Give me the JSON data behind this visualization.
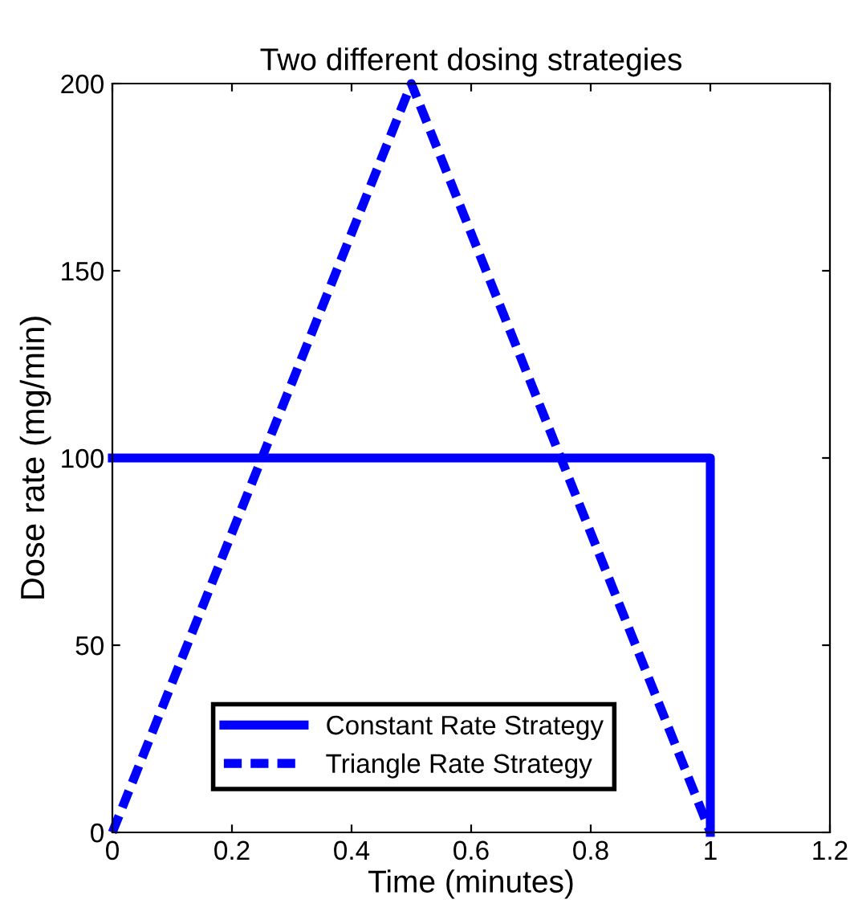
{
  "chart_data": {
    "type": "line",
    "title": "Two different dosing strategies",
    "xlabel": "Time (minutes)",
    "ylabel": "Dose rate (mg/min)",
    "xlim": [
      0,
      1.2
    ],
    "xticks": [
      0,
      0.2,
      0.4,
      0.6,
      0.8,
      1,
      1.2
    ],
    "ylim": [
      0,
      200
    ],
    "yticks": [
      0,
      50,
      100,
      150,
      200
    ],
    "grid": false,
    "legend": "bottom",
    "series": [
      {
        "name": "Constant Rate Strategy",
        "color": "#0000ff",
        "line_style": "solid",
        "x": [
          0,
          1,
          1
        ],
        "values": [
          100,
          100,
          0
        ]
      },
      {
        "name": "Triangle Rate Strategy",
        "color": "#0000ff",
        "line_style": "dashed",
        "x": [
          0,
          0.5,
          1
        ],
        "values": [
          0,
          200,
          0
        ]
      }
    ]
  }
}
